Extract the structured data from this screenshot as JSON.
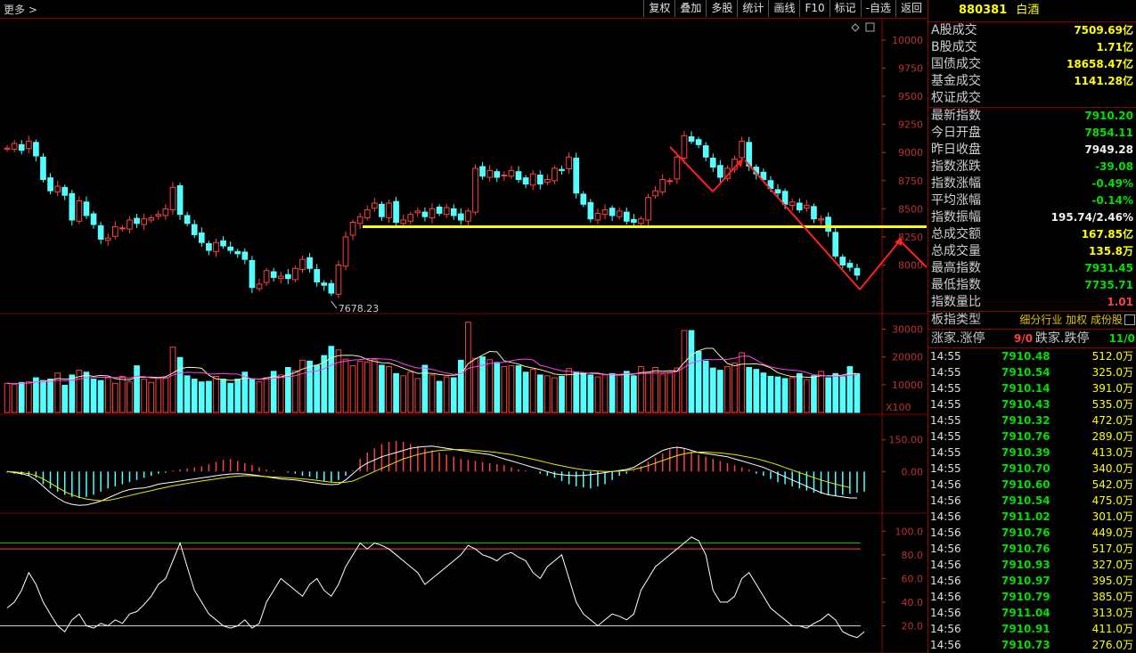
{
  "header": {
    "more_label": "更多 >",
    "toolbar": [
      "复权",
      "叠加",
      "多股",
      "统计",
      "画线",
      "F10",
      "标记",
      "-自选",
      "返回"
    ]
  },
  "panel": {
    "code": "880381",
    "name": "白酒",
    "trade_rows": [
      {
        "label": "A股成交",
        "value": "7509.69亿",
        "color": "yellow"
      },
      {
        "label": "B股成交",
        "value": "1.71亿",
        "color": "yellow"
      },
      {
        "label": "国债成交",
        "value": "18658.47亿",
        "color": "yellow"
      },
      {
        "label": "基金成交",
        "value": "1141.28亿",
        "color": "yellow"
      },
      {
        "label": "权证成交",
        "value": "",
        "color": "yellow"
      }
    ],
    "index_rows": [
      {
        "label": "最新指数",
        "value": "7910.20",
        "color": "green"
      },
      {
        "label": "今日开盘",
        "value": "7854.11",
        "color": "green"
      },
      {
        "label": "昨日收盘",
        "value": "7949.28",
        "color": "white"
      },
      {
        "label": "指数涨跌",
        "value": "-39.08",
        "color": "green"
      },
      {
        "label": "指数涨幅",
        "value": "-0.49%",
        "color": "green"
      },
      {
        "label": "平均涨幅",
        "value": "-0.14%",
        "color": "green"
      },
      {
        "label": "指数振幅",
        "value": "195.74/2.46%",
        "color": "white"
      },
      {
        "label": "总成交额",
        "value": "167.85亿",
        "color": "yellow"
      },
      {
        "label": "总成交量",
        "value": "135.8万",
        "color": "yellow"
      },
      {
        "label": "最高指数",
        "value": "7931.45",
        "color": "green"
      },
      {
        "label": "最低指数",
        "value": "7735.71",
        "color": "green"
      },
      {
        "label": "指数量比",
        "value": "1.01",
        "color": "red"
      }
    ],
    "type_label": "板指类型",
    "type_options": "细分行业 加权 成份股",
    "zd": {
      "up_label": "涨家.涨停",
      "up_value": "9/0",
      "down_label": "跌家.跌停",
      "down_value": "11/0"
    },
    "ticks": [
      {
        "t": "14:55",
        "p": "7910.48",
        "v": "512.0万"
      },
      {
        "t": "14:55",
        "p": "7910.54",
        "v": "325.0万"
      },
      {
        "t": "14:55",
        "p": "7910.14",
        "v": "391.0万"
      },
      {
        "t": "14:55",
        "p": "7910.43",
        "v": "535.0万"
      },
      {
        "t": "14:55",
        "p": "7910.32",
        "v": "472.0万"
      },
      {
        "t": "14:55",
        "p": "7910.76",
        "v": "289.0万"
      },
      {
        "t": "14:55",
        "p": "7910.39",
        "v": "413.0万"
      },
      {
        "t": "14:55",
        "p": "7910.70",
        "v": "340.0万"
      },
      {
        "t": "14:56",
        "p": "7910.60",
        "v": "542.0万"
      },
      {
        "t": "14:56",
        "p": "7910.54",
        "v": "475.0万"
      },
      {
        "t": "14:56",
        "p": "7911.02",
        "v": "301.0万"
      },
      {
        "t": "14:56",
        "p": "7910.76",
        "v": "449.0万"
      },
      {
        "t": "14:56",
        "p": "7910.76",
        "v": "517.0万"
      },
      {
        "t": "14:56",
        "p": "7910.93",
        "v": "327.0万"
      },
      {
        "t": "14:56",
        "p": "7910.97",
        "v": "395.0万"
      },
      {
        "t": "14:56",
        "p": "7910.79",
        "v": "385.0万"
      },
      {
        "t": "14:56",
        "p": "7911.04",
        "v": "313.0万"
      },
      {
        "t": "14:56",
        "p": "7910.91",
        "v": "411.0万"
      },
      {
        "t": "14:56",
        "p": "7910.73",
        "v": "276.0万"
      }
    ]
  },
  "chart_data": [
    {
      "type": "candlestick",
      "ylim": [
        7600,
        10150
      ],
      "yticks": [
        8000,
        8250,
        8500,
        8750,
        9000,
        9250,
        9500,
        9750,
        10000
      ],
      "min_label": "7678.23",
      "support_level": 8340,
      "colors": {
        "up": "#ff4040",
        "down": "#54ffff",
        "support": "#ffff00",
        "arrow": "#ff2020"
      },
      "closes": [
        9040,
        9080,
        9020,
        9100,
        8970,
        8760,
        8660,
        8700,
        8620,
        8400,
        8570,
        8440,
        8360,
        8230,
        8240,
        8340,
        8330,
        8400,
        8370,
        8410,
        8420,
        8450,
        8500,
        8690,
        8450,
        8370,
        8270,
        8200,
        8130,
        8200,
        8170,
        8130,
        8100,
        8050,
        7800,
        7830,
        7950,
        7890,
        7900,
        7880,
        7970,
        8050,
        7970,
        7850,
        7820,
        7750,
        8000,
        8250,
        8380,
        8430,
        8490,
        8550,
        8430,
        8550,
        8380,
        8400,
        8450,
        8480,
        8430,
        8500,
        8460,
        8510,
        8440,
        8400,
        8480,
        8860,
        8790,
        8840,
        8780,
        8800,
        8840,
        8760,
        8720,
        8810,
        8720,
        8760,
        8860,
        8840,
        8960,
        8640,
        8540,
        8410,
        8460,
        8490,
        8440,
        8480,
        8390,
        8380,
        8410,
        8600,
        8660,
        8760,
        8750,
        8960,
        9150,
        9100,
        9070,
        8960,
        8870,
        8780,
        8860,
        8940,
        9100,
        8880,
        8810,
        8760,
        8680,
        8640,
        8540,
        8560,
        8490,
        8530,
        8410,
        8410,
        8300,
        8080,
        8000,
        7980,
        7910
      ],
      "volume": {
        "ylim": [
          0,
          34000
        ],
        "yticks": [
          10000,
          20000,
          30000
        ],
        "unit_label": "X100",
        "values": [
          10500,
          10200,
          10800,
          11000,
          12500,
          11500,
          12000,
          14200,
          9800,
          13500,
          15200,
          14500,
          12000,
          11500,
          12500,
          10500,
          13000,
          11000,
          16800,
          12000,
          10800,
          12200,
          12500,
          23500,
          19800,
          13200,
          12000,
          11000,
          11200,
          13000,
          12000,
          10500,
          12000,
          14500,
          12000,
          11000,
          12500,
          14800,
          13500,
          16200,
          15000,
          18800,
          18500,
          17000,
          20500,
          23800,
          22500,
          19200,
          16800,
          18500,
          18200,
          19000,
          17000,
          16500,
          14000,
          13200,
          14500,
          12200,
          17000,
          13500,
          11200,
          12800,
          12500,
          18800,
          32500,
          19500,
          20000,
          19000,
          18000,
          16500,
          16800,
          16800,
          14500,
          15500,
          13500,
          13200,
          12500,
          13000,
          15800,
          14500,
          14200,
          13500,
          12800,
          13500,
          14000,
          13500,
          14800,
          13200,
          16500,
          14500,
          16200,
          13800,
          14200,
          16000,
          29500,
          29500,
          22000,
          18500,
          16000,
          15200,
          16500,
          17800,
          21500,
          16200,
          15500,
          14200,
          13000,
          12800,
          12200,
          12500,
          14000,
          11800,
          13200,
          14800,
          12500,
          14000,
          12800,
          16500,
          14000
        ]
      }
    },
    {
      "type": "macd",
      "ylim": [
        -180,
        250
      ],
      "yticks": [
        0,
        150
      ],
      "hist": [
        -5,
        -10,
        -15,
        -20,
        -30,
        -60,
        -80,
        -95,
        -110,
        -120,
        -125,
        -120,
        -110,
        -95,
        -80,
        -70,
        -60,
        -50,
        -40,
        -30,
        -20,
        -10,
        -5,
        5,
        10,
        15,
        20,
        25,
        35,
        45,
        55,
        60,
        50,
        40,
        30,
        20,
        10,
        5,
        0,
        -5,
        -10,
        -20,
        -25,
        -35,
        -45,
        -50,
        -40,
        -20,
        5,
        60,
        90,
        110,
        130,
        140,
        145,
        140,
        130,
        120,
        110,
        100,
        90,
        80,
        70,
        60,
        55,
        50,
        45,
        40,
        35,
        30,
        20,
        10,
        5,
        0,
        -10,
        -20,
        -30,
        -45,
        -60,
        -70,
        -75,
        -80,
        -70,
        -60,
        -40,
        -20,
        -10,
        5,
        25,
        45,
        65,
        85,
        105,
        115,
        110,
        95,
        80,
        70,
        60,
        50,
        40,
        30,
        20,
        10,
        -10,
        -20,
        -35,
        -50,
        -60,
        -70,
        -80,
        -90,
        -100,
        -105,
        -110,
        -115,
        -110,
        -105,
        -100,
        -95
      ],
      "dif": [
        0,
        -5,
        -10,
        -20,
        -40,
        -70,
        -100,
        -125,
        -145,
        -155,
        -160,
        -158,
        -150,
        -140,
        -125,
        -110,
        -95,
        -85,
        -80,
        -78,
        -70,
        -60,
        -55,
        -50,
        -45,
        -40,
        -35,
        -30,
        -25,
        -20,
        -15,
        -12,
        -10,
        -12,
        -15,
        -20,
        -25,
        -30,
        -35,
        -38,
        -40,
        -45,
        -50,
        -55,
        -60,
        -62,
        -60,
        -40,
        -10,
        20,
        40,
        55,
        70,
        80,
        90,
        100,
        110,
        115,
        118,
        120,
        115,
        110,
        105,
        100,
        95,
        90,
        85,
        80,
        70,
        60,
        50,
        40,
        30,
        20,
        10,
        0,
        -10,
        -15,
        -18,
        -20,
        -18,
        -15,
        -10,
        -5,
        0,
        5,
        10,
        20,
        40,
        60,
        80,
        100,
        110,
        115,
        110,
        100,
        90,
        85,
        80,
        75,
        70,
        60,
        50,
        40,
        30,
        20,
        5,
        -10,
        -25,
        -40,
        -55,
        -70,
        -85,
        -100,
        -110,
        -115,
        -120,
        -125,
        -125
      ],
      "dea": [
        0,
        -2,
        -5,
        -10,
        -20,
        -35,
        -55,
        -75,
        -95,
        -110,
        -122,
        -130,
        -135,
        -138,
        -136,
        -130,
        -122,
        -114,
        -106,
        -98,
        -90,
        -82,
        -75,
        -68,
        -62,
        -56,
        -50,
        -45,
        -40,
        -35,
        -30,
        -25,
        -22,
        -20,
        -20,
        -22,
        -24,
        -26,
        -28,
        -30,
        -32,
        -35,
        -38,
        -42,
        -46,
        -50,
        -52,
        -50,
        -45,
        -30,
        -15,
        0,
        15,
        30,
        45,
        60,
        70,
        80,
        88,
        95,
        100,
        102,
        104,
        104,
        103,
        100,
        97,
        94,
        90,
        85,
        80,
        73,
        66,
        58,
        50,
        42,
        34,
        27,
        20,
        14,
        9,
        5,
        2,
        0,
        0,
        2,
        5,
        10,
        18,
        28,
        40,
        52,
        64,
        75,
        84,
        90,
        92,
        92,
        90,
        88,
        84,
        80,
        74,
        68,
        61,
        52,
        42,
        31,
        19,
        7,
        -5,
        -17,
        -29,
        -40,
        -50,
        -60,
        -68,
        -76
      ]
    },
    {
      "type": "line",
      "ylim": [
        0,
        110
      ],
      "yticks": [
        20,
        40,
        60,
        80,
        100
      ],
      "ref_lines": [
        {
          "value": 90,
          "color": "#00c000"
        },
        {
          "value": 85,
          "color": "#ff4040"
        },
        {
          "value": 20,
          "color": "#d0d0d0"
        }
      ],
      "values": [
        35,
        40,
        50,
        65,
        55,
        40,
        30,
        20,
        15,
        25,
        30,
        20,
        18,
        22,
        20,
        25,
        22,
        30,
        32,
        38,
        45,
        55,
        60,
        75,
        90,
        70,
        50,
        40,
        30,
        25,
        20,
        18,
        20,
        25,
        18,
        22,
        40,
        50,
        60,
        55,
        50,
        45,
        55,
        60,
        50,
        45,
        55,
        70,
        80,
        90,
        85,
        90,
        88,
        85,
        80,
        75,
        70,
        65,
        55,
        60,
        65,
        70,
        75,
        80,
        88,
        85,
        80,
        78,
        75,
        80,
        82,
        78,
        75,
        65,
        60,
        70,
        75,
        80,
        60,
        40,
        30,
        25,
        20,
        25,
        30,
        28,
        25,
        30,
        50,
        60,
        70,
        75,
        80,
        85,
        90,
        95,
        92,
        80,
        50,
        40,
        40,
        45,
        60,
        65,
        55,
        45,
        35,
        30,
        25,
        20,
        20,
        18,
        22,
        25,
        30,
        25,
        15,
        12,
        10,
        15
      ]
    }
  ]
}
